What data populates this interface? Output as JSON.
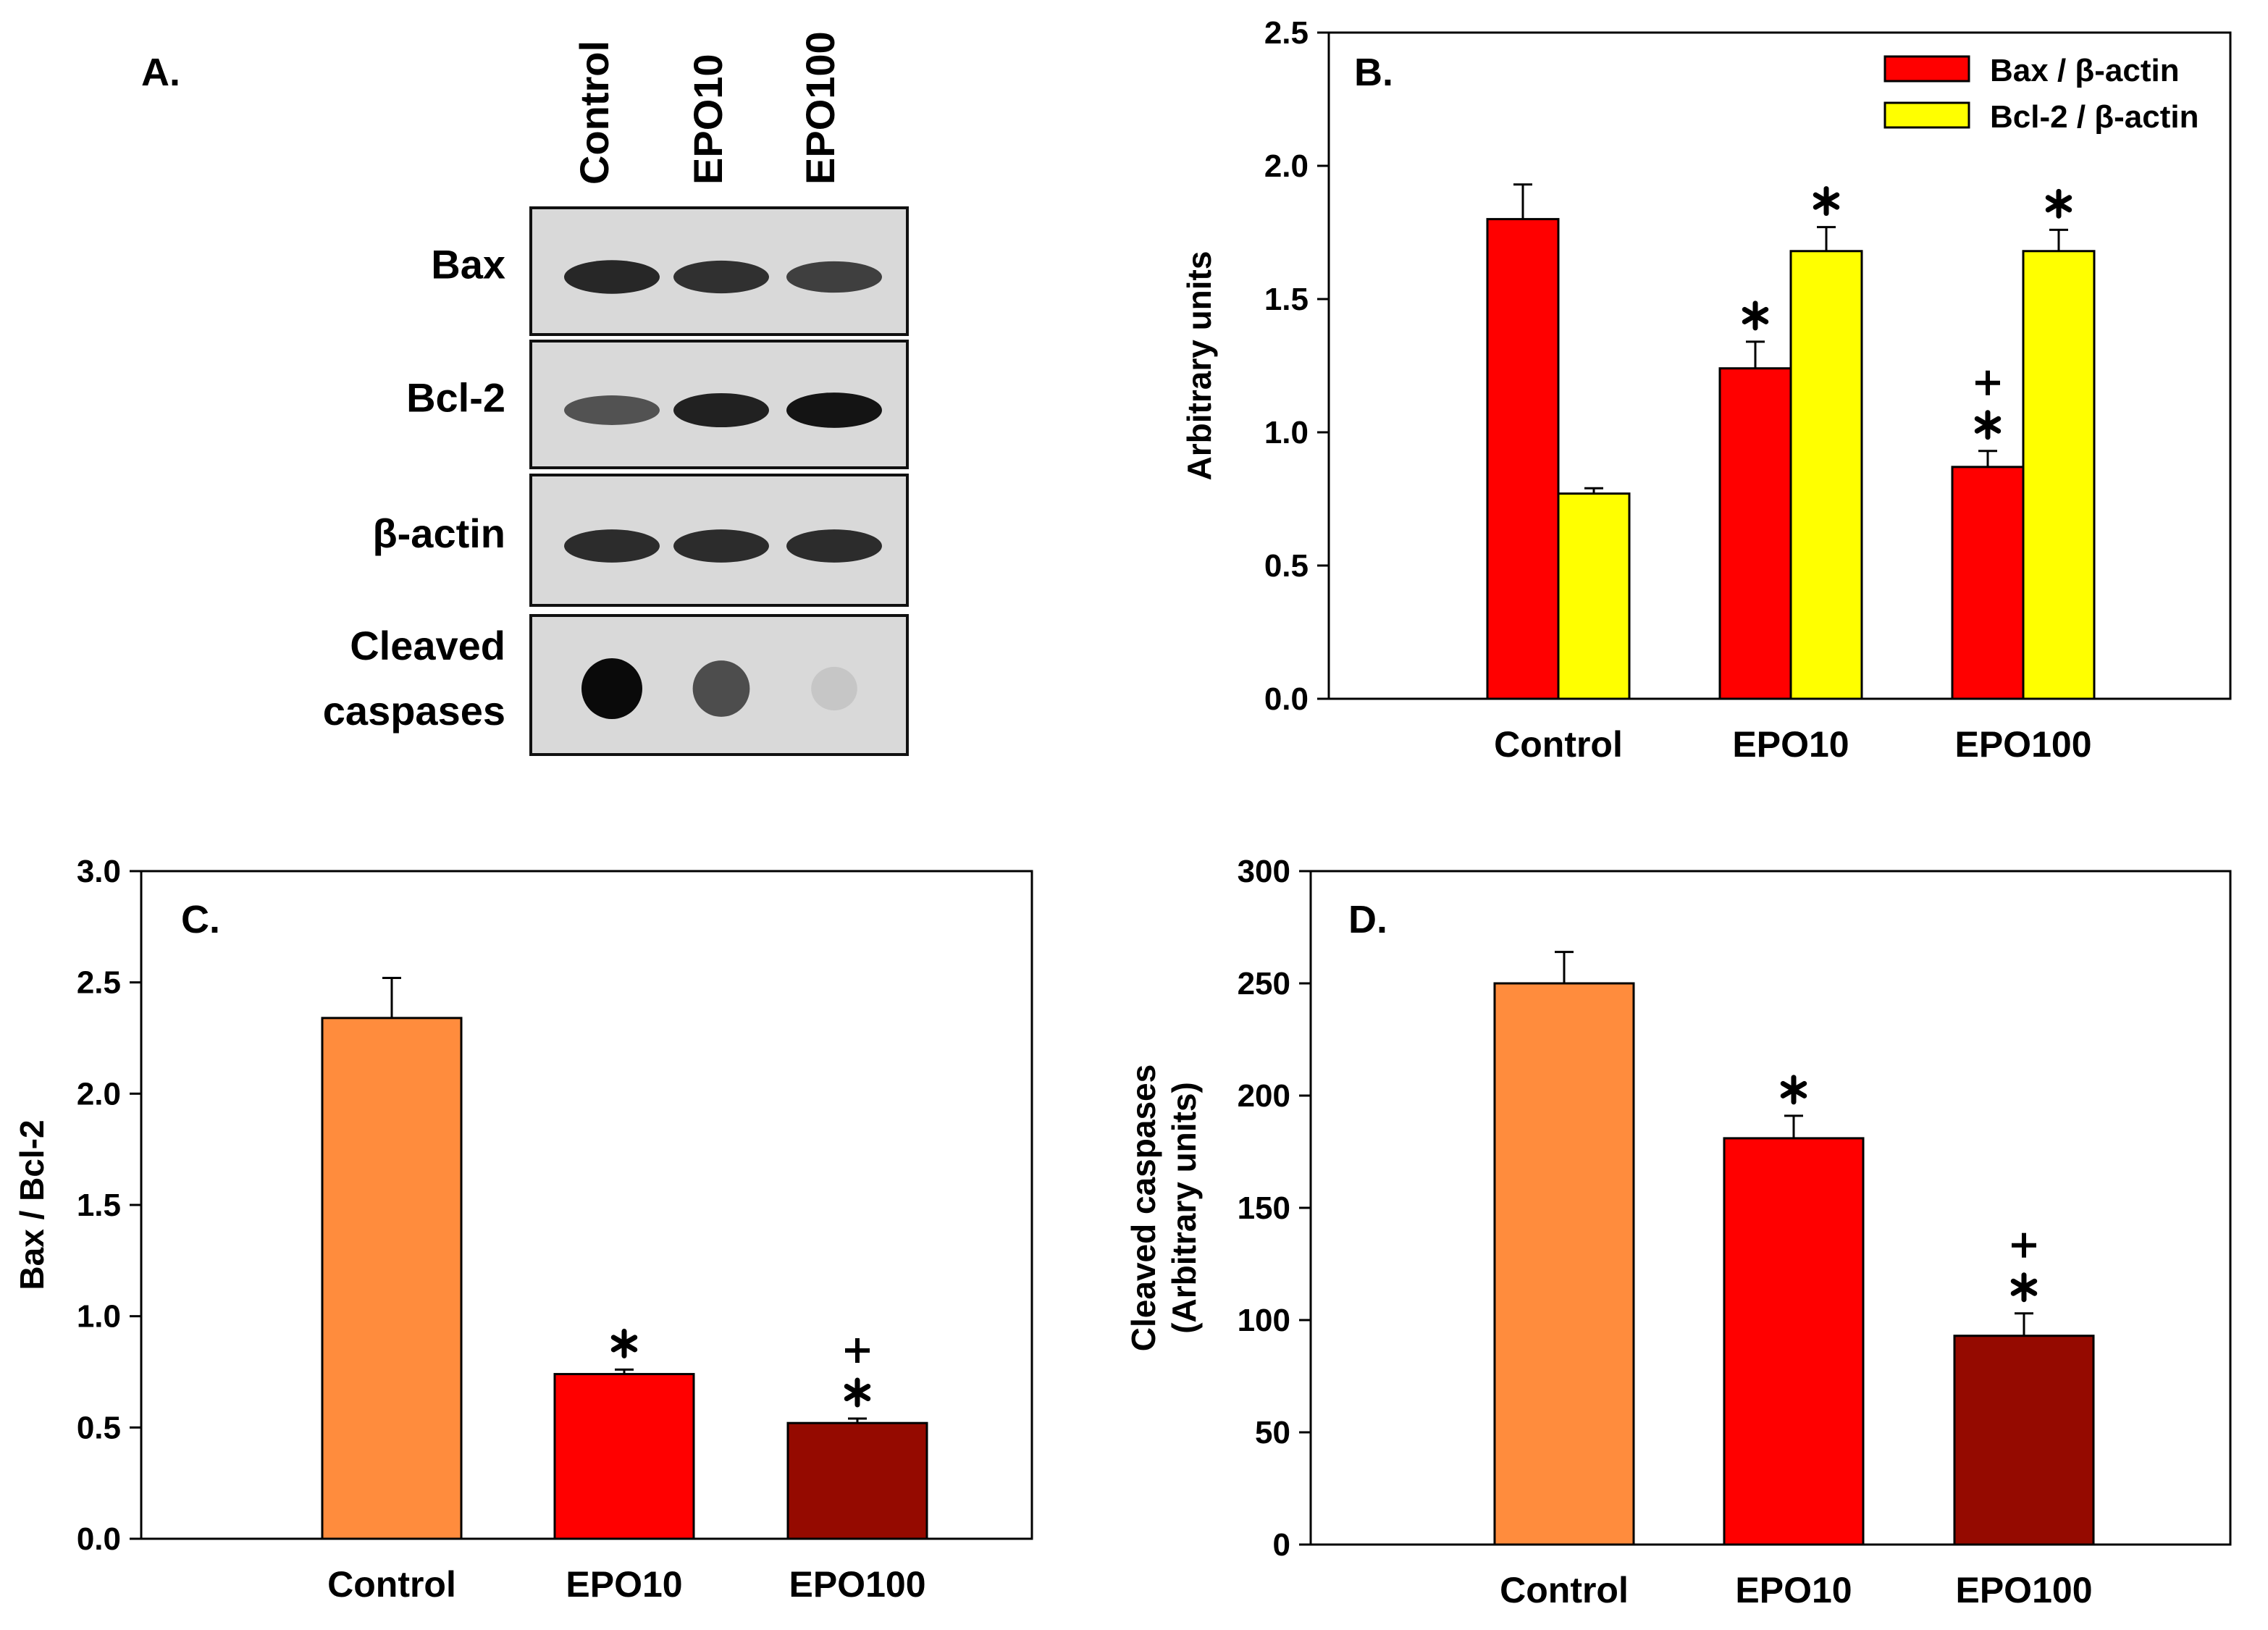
{
  "figure": {
    "panel_labels": {
      "a": "A.",
      "b": "B.",
      "c": "C.",
      "d": "D."
    }
  },
  "colors": {
    "red": "#ff0000",
    "yellow": "#ffff00",
    "orange": "#ff8c3d",
    "dark_red": "#950a00",
    "axis": "#000000"
  },
  "blot": {
    "lanes": [
      "Control",
      "EPO10",
      "EPO100"
    ],
    "rows": [
      {
        "label_lines": [
          "Bax"
        ],
        "band_intensity": [
          0.85,
          0.8,
          0.72
        ]
      },
      {
        "label_lines": [
          "Bcl-2"
        ],
        "band_intensity": [
          0.62,
          0.88,
          0.95
        ]
      },
      {
        "label_lines": [
          "β-actin"
        ],
        "band_intensity": [
          0.82,
          0.82,
          0.82
        ]
      },
      {
        "label_lines": [
          "Cleaved",
          "caspases"
        ],
        "band_intensity": [
          1.0,
          0.78,
          0.15
        ]
      }
    ]
  },
  "chart_data": [
    {
      "panel": "B",
      "type": "bar",
      "title": "",
      "categories": [
        "Control",
        "EPO10",
        "EPO100"
      ],
      "series": [
        {
          "name": "Bax / β-actin",
          "color": "#ff0000",
          "values": [
            1.8,
            1.24,
            0.87
          ],
          "errors": [
            0.13,
            0.1,
            0.06
          ],
          "annotations": [
            "",
            "*",
            "*+"
          ]
        },
        {
          "name": "Bcl-2 / β-actin",
          "color": "#ffff00",
          "values": [
            0.77,
            1.68,
            1.68
          ],
          "errors": [
            0.02,
            0.09,
            0.08
          ],
          "annotations": [
            "",
            "*",
            "*"
          ]
        }
      ],
      "xlabel": "",
      "ylabel": "Arbitrary units",
      "ylim": [
        0,
        2.5
      ],
      "yticks": [
        "0.0",
        "0.5",
        "1.0",
        "1.5",
        "2.0",
        "2.5"
      ],
      "legend_position": "top-right",
      "grid": false
    },
    {
      "panel": "C",
      "type": "bar",
      "title": "",
      "categories": [
        "Control",
        "EPO10",
        "EPO100"
      ],
      "series": [
        {
          "name": "Bax / Bcl-2",
          "colors": [
            "#ff8c3d",
            "#ff0000",
            "#950a00"
          ],
          "values": [
            2.34,
            0.74,
            0.52
          ],
          "errors": [
            0.18,
            0.02,
            0.02
          ],
          "annotations": [
            "",
            "*",
            "*+"
          ]
        }
      ],
      "xlabel": "",
      "ylabel": "Bax / Bcl-2",
      "ylim": [
        0,
        3.0
      ],
      "yticks": [
        "0.0",
        "0.5",
        "1.0",
        "1.5",
        "2.0",
        "2.5",
        "3.0"
      ],
      "grid": false
    },
    {
      "panel": "D",
      "type": "bar",
      "title": "",
      "categories": [
        "Control",
        "EPO10",
        "EPO100"
      ],
      "series": [
        {
          "name": "Cleaved caspases",
          "colors": [
            "#ff8c3d",
            "#ff0000",
            "#950a00"
          ],
          "values": [
            250,
            181,
            93
          ],
          "errors": [
            14,
            10,
            10
          ],
          "annotations": [
            "",
            "*",
            "*+"
          ]
        }
      ],
      "xlabel": "",
      "ylabel_lines": [
        "Cleaved caspases",
        "(Arbitrary units)"
      ],
      "ylim": [
        0,
        300
      ],
      "yticks": [
        "0",
        "50",
        "100",
        "150",
        "200",
        "250",
        "300"
      ],
      "grid": false
    }
  ]
}
